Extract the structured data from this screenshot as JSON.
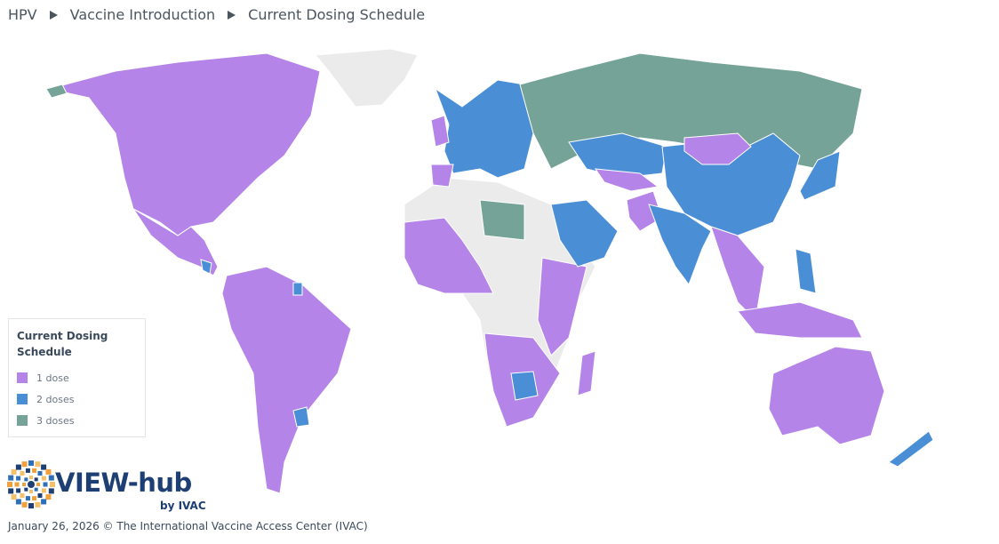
{
  "breadcrumb": [
    "HPV",
    "Vaccine Introduction",
    "Current Dosing Schedule"
  ],
  "legend": {
    "title": "Current Dosing Schedule",
    "items": [
      {
        "label": "1 dose",
        "color": "#b584e8"
      },
      {
        "label": "2 doses",
        "color": "#4a8fd6"
      },
      {
        "label": "3 doses",
        "color": "#76a397"
      }
    ]
  },
  "logo": {
    "name": "VIEW-hub",
    "byline": "by IVAC"
  },
  "footer": "January 26, 2026 © The International Vaccine Access Center (IVAC)"
}
